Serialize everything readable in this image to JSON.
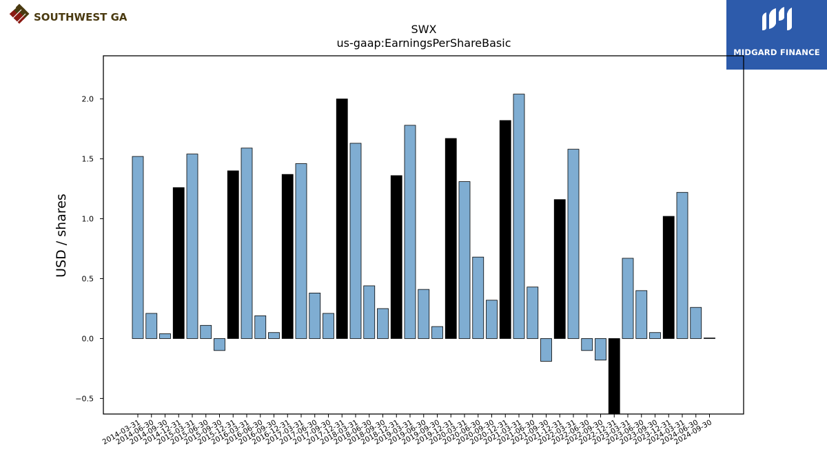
{
  "brand": {
    "company_name": "SOUTHWEST GAS",
    "company_color": "#4a3a10",
    "finance_name": "MIDGARD FINANCE",
    "finance_bg": "#2d5bab"
  },
  "chart_data": {
    "type": "bar",
    "title": "SWX",
    "subtitle": "us-gaap:EarningsPerShareBasic",
    "xlabel": "",
    "ylabel": "USD / shares",
    "ylim": [
      -0.63,
      2.36
    ],
    "yticks": [
      -0.5,
      0.0,
      0.5,
      1.0,
      1.5,
      2.0
    ],
    "ytick_labels": [
      "−0.5",
      "0.0",
      "0.5",
      "1.0",
      "1.5",
      "2.0"
    ],
    "grid": false,
    "colors": {
      "quarter": "#7fadd2",
      "annual": "#000000",
      "edge": "#000000"
    },
    "categories": [
      "2014-03-31",
      "2014-06-30",
      "2014-09-30",
      "2014-12-31",
      "2015-03-31",
      "2015-06-30",
      "2015-09-30",
      "2015-12-31",
      "2016-03-31",
      "2016-06-30",
      "2016-09-30",
      "2016-12-31",
      "2017-03-31",
      "2017-06-30",
      "2017-09-30",
      "2017-12-31",
      "2018-03-31",
      "2018-06-30",
      "2018-09-30",
      "2018-12-31",
      "2019-03-31",
      "2019-06-30",
      "2019-09-30",
      "2019-12-31",
      "2020-03-31",
      "2020-06-30",
      "2020-09-30",
      "2020-12-31",
      "2021-03-31",
      "2021-06-30",
      "2021-09-30",
      "2021-12-31",
      "2022-03-31",
      "2022-06-30",
      "2022-09-30",
      "2022-12-31",
      "2023-03-31",
      "2023-06-30",
      "2023-09-30",
      "2023-12-31",
      "2024-03-31",
      "2024-06-30",
      "2024-09-30"
    ],
    "values": [
      1.52,
      0.21,
      0.04,
      1.26,
      1.54,
      0.11,
      -0.1,
      1.4,
      1.59,
      0.19,
      0.05,
      1.37,
      1.46,
      0.38,
      0.21,
      2.0,
      1.63,
      0.44,
      0.25,
      1.36,
      1.78,
      0.41,
      0.1,
      1.67,
      1.31,
      0.68,
      0.32,
      1.82,
      2.04,
      0.43,
      -0.19,
      1.16,
      1.58,
      -0.1,
      -0.18,
      -0.63,
      0.67,
      0.4,
      0.05,
      1.02,
      1.22,
      0.26,
      0.005
    ],
    "annual_flags": [
      false,
      false,
      false,
      true,
      false,
      false,
      false,
      true,
      false,
      false,
      false,
      true,
      false,
      false,
      false,
      true,
      false,
      false,
      false,
      true,
      false,
      false,
      false,
      true,
      false,
      false,
      false,
      true,
      false,
      false,
      false,
      true,
      false,
      false,
      false,
      true,
      false,
      false,
      false,
      true,
      false,
      false,
      false
    ]
  }
}
